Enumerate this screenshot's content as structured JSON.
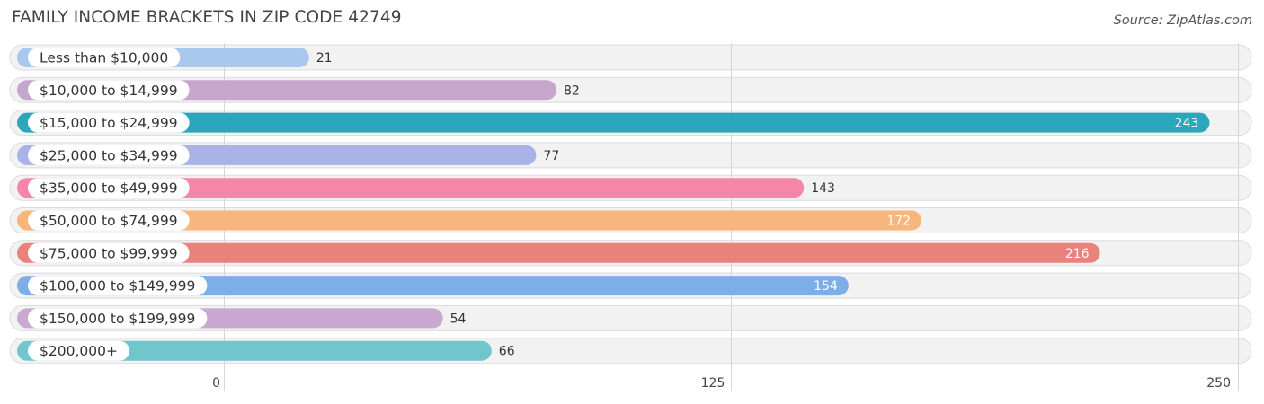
{
  "chart_data": {
    "type": "bar",
    "orientation": "horizontal",
    "title": "FAMILY INCOME BRACKETS IN ZIP CODE 42749",
    "source": "Source: ZipAtlas.com",
    "categories": [
      "Less than $10,000",
      "$10,000 to $14,999",
      "$15,000 to $24,999",
      "$25,000 to $34,999",
      "$35,000 to $49,999",
      "$50,000 to $74,999",
      "$75,000 to $99,999",
      "$100,000 to $149,999",
      "$150,000 to $199,999",
      "$200,000+"
    ],
    "values": [
      21,
      82,
      243,
      77,
      143,
      172,
      216,
      154,
      54,
      66
    ],
    "colors": [
      "#a9c8ee",
      "#c6a6cd",
      "#2ba6ba",
      "#aab2e8",
      "#f586aa",
      "#f7b77c",
      "#e8827c",
      "#7daee7",
      "#c9a9d1",
      "#71c5cd"
    ],
    "value_label_inside": [
      false,
      false,
      true,
      false,
      false,
      true,
      true,
      true,
      false,
      false
    ],
    "xlim": [
      0,
      250
    ],
    "ticks": [
      0,
      125,
      250
    ],
    "tick_labels": [
      "0",
      "125",
      "250"
    ],
    "xlabel": "",
    "ylabel": "",
    "grid": true
  }
}
